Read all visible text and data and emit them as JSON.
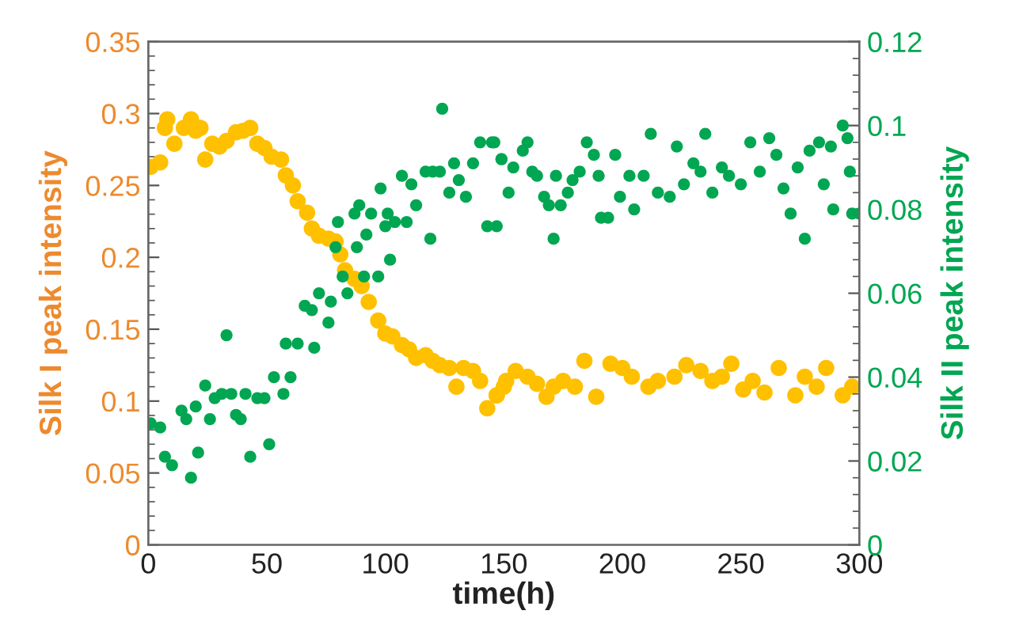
{
  "chart_data": {
    "type": "scatter",
    "xlabel": "time(h)",
    "ylabel": "Silk I peak intensity",
    "y2label": "Silk II peak intensity",
    "xlim": [
      0,
      300
    ],
    "xticks": [
      0,
      50,
      100,
      150,
      200,
      250,
      300
    ],
    "ylim": [
      0,
      0.35
    ],
    "yticks": [
      0,
      0.05,
      0.1,
      0.15,
      0.2,
      0.25,
      0.3,
      0.35
    ],
    "y2lim": [
      0,
      0.12
    ],
    "y2ticks": [
      0,
      0.02,
      0.04,
      0.06,
      0.08,
      0.1,
      0.12
    ],
    "grid": false,
    "legend": false,
    "marker": "circle",
    "series": [
      {
        "color": "#ffc000",
        "x": [
          1,
          5,
          8,
          7,
          11,
          15,
          18,
          20,
          22,
          24,
          27,
          30,
          33,
          37,
          40,
          43,
          46,
          49,
          52,
          56,
          58,
          61,
          63,
          67,
          69,
          72,
          76,
          79,
          81,
          83,
          87,
          90,
          93,
          97,
          100,
          103,
          107,
          110,
          113,
          117,
          120,
          123,
          127,
          130,
          133,
          137,
          140,
          143,
          147,
          150,
          147,
          151,
          155,
          160,
          164,
          168,
          171,
          175,
          180,
          184,
          189,
          195,
          200,
          204,
          211,
          215,
          222,
          227,
          233,
          238,
          242,
          246,
          251,
          255,
          260,
          266,
          273,
          277,
          282,
          286,
          293,
          297
        ],
        "values": [
          0.263,
          0.266,
          0.296,
          0.29,
          0.279,
          0.29,
          0.296,
          0.288,
          0.29,
          0.268,
          0.279,
          0.277,
          0.281,
          0.287,
          0.288,
          0.29,
          0.279,
          0.276,
          0.27,
          0.268,
          0.257,
          0.25,
          0.239,
          0.231,
          0.22,
          0.215,
          0.213,
          0.211,
          0.202,
          0.191,
          0.185,
          0.18,
          0.169,
          0.156,
          0.147,
          0.145,
          0.139,
          0.136,
          0.13,
          0.132,
          0.128,
          0.125,
          0.123,
          0.11,
          0.123,
          0.121,
          0.114,
          0.095,
          0.104,
          0.11,
          0.104,
          0.114,
          0.121,
          0.117,
          0.112,
          0.103,
          0.11,
          0.114,
          0.11,
          0.128,
          0.103,
          0.126,
          0.123,
          0.117,
          0.11,
          0.114,
          0.117,
          0.125,
          0.121,
          0.114,
          0.117,
          0.126,
          0.108,
          0.114,
          0.106,
          0.123,
          0.104,
          0.117,
          0.11,
          0.123,
          0.104,
          0.11
        ]
      },
      {
        "color": "#00a651",
        "axis": "y2",
        "x": [
          1,
          5,
          7,
          10,
          14,
          16,
          18,
          20,
          21,
          24,
          26,
          28,
          31,
          33,
          35,
          37,
          39,
          41,
          43,
          46,
          49,
          51,
          53,
          57,
          58,
          60,
          63,
          66,
          69,
          70,
          72,
          76,
          77,
          79,
          80,
          82,
          84,
          87,
          88,
          89,
          91,
          92,
          94,
          97,
          98,
          100,
          101,
          102,
          104,
          107,
          109,
          111,
          113,
          117,
          119,
          120,
          123,
          124,
          127,
          129,
          131,
          134,
          137,
          140,
          143,
          146,
          149,
          145,
          147,
          149,
          152,
          154,
          158,
          160,
          162,
          164,
          167,
          169,
          171,
          172,
          174,
          177,
          179,
          182,
          185,
          188,
          190,
          191,
          194,
          197,
          199,
          203,
          205,
          209,
          212,
          215,
          220,
          223,
          226,
          230,
          233,
          235,
          238,
          242,
          245,
          250,
          254,
          258,
          262,
          265,
          268,
          271,
          274,
          277,
          279,
          283,
          285,
          288,
          289,
          293,
          295,
          296,
          297,
          300
        ],
        "values": [
          0.029,
          0.028,
          0.021,
          0.019,
          0.032,
          0.03,
          0.016,
          0.033,
          0.022,
          0.038,
          0.03,
          0.035,
          0.036,
          0.05,
          0.036,
          0.031,
          0.03,
          0.036,
          0.021,
          0.035,
          0.035,
          0.024,
          0.04,
          0.036,
          0.048,
          0.04,
          0.048,
          0.057,
          0.056,
          0.047,
          0.06,
          0.053,
          0.058,
          0.071,
          0.077,
          0.064,
          0.06,
          0.079,
          0.071,
          0.081,
          0.064,
          0.074,
          0.079,
          0.064,
          0.085,
          0.076,
          0.079,
          0.068,
          0.077,
          0.088,
          0.077,
          0.086,
          0.081,
          0.089,
          0.073,
          0.089,
          0.089,
          0.104,
          0.084,
          0.091,
          0.087,
          0.083,
          0.091,
          0.096,
          0.076,
          0.096,
          0.092,
          0.096,
          0.076,
          0.092,
          0.084,
          0.09,
          0.094,
          0.096,
          0.089,
          0.088,
          0.083,
          0.081,
          0.073,
          0.088,
          0.081,
          0.084,
          0.087,
          0.089,
          0.096,
          0.093,
          0.088,
          0.078,
          0.078,
          0.093,
          0.083,
          0.088,
          0.08,
          0.088,
          0.098,
          0.084,
          0.083,
          0.095,
          0.086,
          0.091,
          0.089,
          0.098,
          0.084,
          0.09,
          0.088,
          0.086,
          0.096,
          0.089,
          0.097,
          0.093,
          0.085,
          0.079,
          0.09,
          0.073,
          0.094,
          0.096,
          0.086,
          0.095,
          0.08,
          0.1,
          0.097,
          0.089,
          0.079,
          0.079
        ]
      }
    ]
  }
}
